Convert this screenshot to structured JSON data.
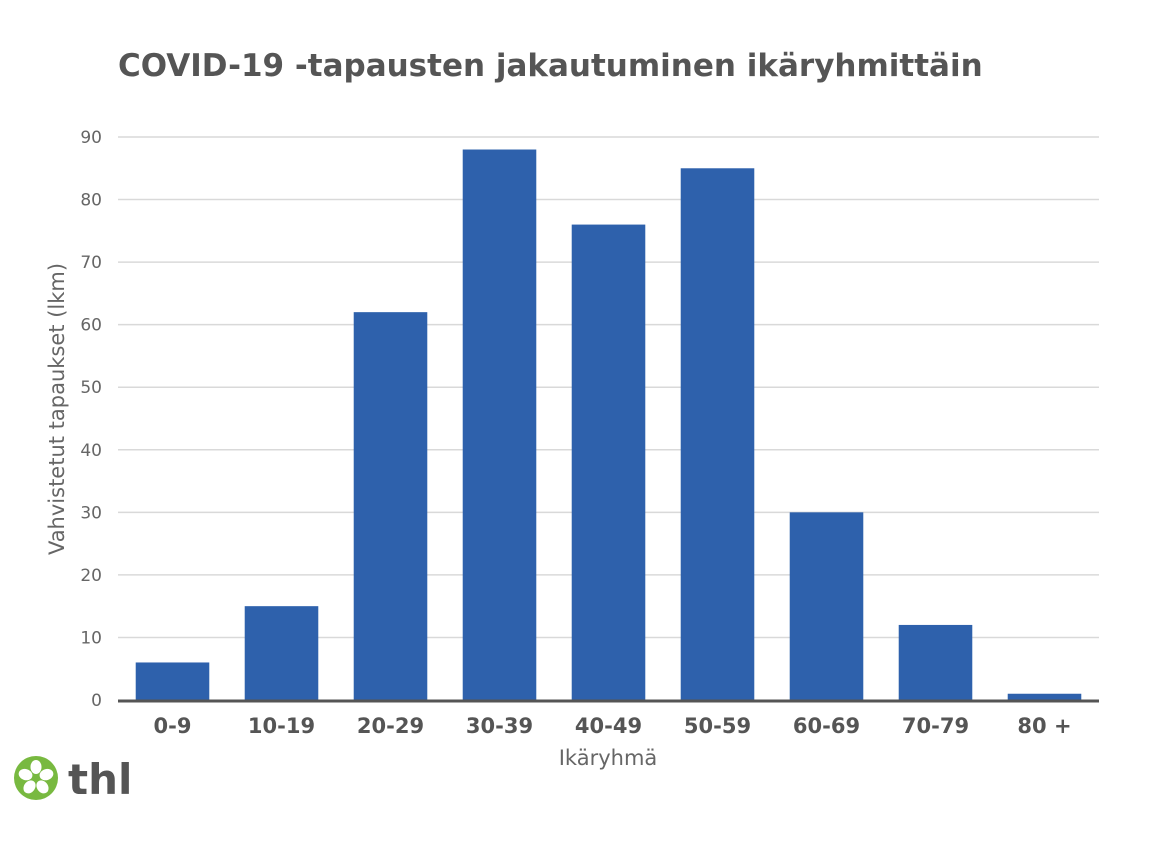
{
  "chart_data": {
    "type": "bar",
    "title": "COVID-19 -tapausten jakautuminen ikäryhmittäin",
    "xlabel": "Ikäryhmä",
    "ylabel": "Vahvistetut tapaukset (lkm)",
    "categories": [
      "0-9",
      "10-19",
      "20-29",
      "30-39",
      "40-49",
      "50-59",
      "60-69",
      "70-79",
      "80 +"
    ],
    "values": [
      6,
      15,
      62,
      88,
      76,
      85,
      30,
      12,
      1
    ],
    "ylim": [
      0,
      90
    ],
    "yticks": [
      0,
      10,
      20,
      30,
      40,
      50,
      60,
      70,
      80,
      90
    ],
    "grid": true,
    "bar_color": "#2e61ac"
  },
  "logo": {
    "text": "thl",
    "icon": "thl-flower-logo-icon",
    "color": "#78b940",
    "text_color": "#555555"
  }
}
